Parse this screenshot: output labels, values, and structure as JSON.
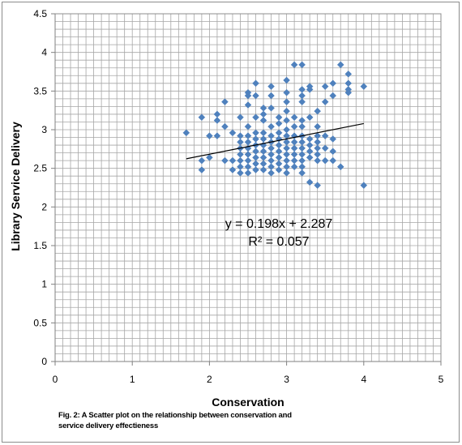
{
  "chart_data": {
    "type": "scatter",
    "xlabel": "Conservation",
    "ylabel": "Library  Service Delivery",
    "xlim": [
      0,
      5
    ],
    "ylim": [
      0,
      4.5
    ],
    "x_ticks": [
      "0",
      "1",
      "2",
      "3",
      "4",
      "5"
    ],
    "y_ticks": [
      "0",
      "0.5",
      "1",
      "1.5",
      "2",
      "2.5",
      "3",
      "3.5",
      "4",
      "4.5"
    ],
    "grid": true,
    "marker_color": "#4f81bd",
    "trendline": {
      "slope": 0.198,
      "intercept": 2.287,
      "x_range": [
        1.7,
        4.0
      ]
    },
    "equation_text": "y = 0.198x + 2.287",
    "r2_text": "R² = 0.057",
    "points": [
      {
        "x": 1.7,
        "y": 2.96
      },
      {
        "x": 1.9,
        "y": 3.16
      },
      {
        "x": 1.9,
        "y": 2.6
      },
      {
        "x": 1.9,
        "y": 2.48
      },
      {
        "x": 2.0,
        "y": 2.92
      },
      {
        "x": 2.0,
        "y": 2.64
      },
      {
        "x": 2.1,
        "y": 3.2
      },
      {
        "x": 2.1,
        "y": 3.12
      },
      {
        "x": 2.1,
        "y": 2.92
      },
      {
        "x": 2.2,
        "y": 3.36
      },
      {
        "x": 2.2,
        "y": 3.04
      },
      {
        "x": 2.2,
        "y": 2.6
      },
      {
        "x": 2.3,
        "y": 2.96
      },
      {
        "x": 2.3,
        "y": 2.6
      },
      {
        "x": 2.3,
        "y": 2.48
      },
      {
        "x": 2.4,
        "y": 3.16
      },
      {
        "x": 2.4,
        "y": 2.92
      },
      {
        "x": 2.4,
        "y": 2.84
      },
      {
        "x": 2.4,
        "y": 2.76
      },
      {
        "x": 2.4,
        "y": 2.68
      },
      {
        "x": 2.4,
        "y": 2.6
      },
      {
        "x": 2.4,
        "y": 2.52
      },
      {
        "x": 2.4,
        "y": 2.44
      },
      {
        "x": 2.5,
        "y": 3.48
      },
      {
        "x": 2.5,
        "y": 3.44
      },
      {
        "x": 2.5,
        "y": 3.32
      },
      {
        "x": 2.5,
        "y": 3.04
      },
      {
        "x": 2.5,
        "y": 2.92
      },
      {
        "x": 2.5,
        "y": 2.84
      },
      {
        "x": 2.5,
        "y": 2.76
      },
      {
        "x": 2.5,
        "y": 2.68
      },
      {
        "x": 2.5,
        "y": 2.6
      },
      {
        "x": 2.5,
        "y": 2.52
      },
      {
        "x": 2.5,
        "y": 2.44
      },
      {
        "x": 2.6,
        "y": 3.6
      },
      {
        "x": 2.6,
        "y": 3.44
      },
      {
        "x": 2.6,
        "y": 3.16
      },
      {
        "x": 2.6,
        "y": 2.96
      },
      {
        "x": 2.6,
        "y": 2.88
      },
      {
        "x": 2.6,
        "y": 2.8
      },
      {
        "x": 2.6,
        "y": 2.72
      },
      {
        "x": 2.6,
        "y": 2.64
      },
      {
        "x": 2.6,
        "y": 2.56
      },
      {
        "x": 2.6,
        "y": 2.48
      },
      {
        "x": 2.7,
        "y": 3.28
      },
      {
        "x": 2.7,
        "y": 3.2
      },
      {
        "x": 2.7,
        "y": 3.12
      },
      {
        "x": 2.7,
        "y": 2.96
      },
      {
        "x": 2.7,
        "y": 2.88
      },
      {
        "x": 2.7,
        "y": 2.8
      },
      {
        "x": 2.7,
        "y": 2.72
      },
      {
        "x": 2.7,
        "y": 2.64
      },
      {
        "x": 2.7,
        "y": 2.56
      },
      {
        "x": 2.7,
        "y": 2.48
      },
      {
        "x": 2.8,
        "y": 3.56
      },
      {
        "x": 2.8,
        "y": 3.44
      },
      {
        "x": 2.8,
        "y": 3.28
      },
      {
        "x": 2.8,
        "y": 3.04
      },
      {
        "x": 2.8,
        "y": 2.92
      },
      {
        "x": 2.8,
        "y": 2.84
      },
      {
        "x": 2.8,
        "y": 2.76
      },
      {
        "x": 2.8,
        "y": 2.68
      },
      {
        "x": 2.8,
        "y": 2.6
      },
      {
        "x": 2.8,
        "y": 2.52
      },
      {
        "x": 2.8,
        "y": 2.44
      },
      {
        "x": 2.9,
        "y": 3.16
      },
      {
        "x": 2.9,
        "y": 3.08
      },
      {
        "x": 2.9,
        "y": 2.96
      },
      {
        "x": 2.9,
        "y": 2.88
      },
      {
        "x": 2.9,
        "y": 2.8
      },
      {
        "x": 2.9,
        "y": 2.72
      },
      {
        "x": 2.9,
        "y": 2.64
      },
      {
        "x": 2.9,
        "y": 2.56
      },
      {
        "x": 2.9,
        "y": 2.48
      },
      {
        "x": 3.0,
        "y": 3.64
      },
      {
        "x": 3.0,
        "y": 3.48
      },
      {
        "x": 3.0,
        "y": 3.36
      },
      {
        "x": 3.0,
        "y": 3.24
      },
      {
        "x": 3.0,
        "y": 3.12
      },
      {
        "x": 3.0,
        "y": 3.0
      },
      {
        "x": 3.0,
        "y": 2.92
      },
      {
        "x": 3.0,
        "y": 2.84
      },
      {
        "x": 3.0,
        "y": 2.76
      },
      {
        "x": 3.0,
        "y": 2.68
      },
      {
        "x": 3.0,
        "y": 2.6
      },
      {
        "x": 3.0,
        "y": 2.52
      },
      {
        "x": 3.0,
        "y": 2.44
      },
      {
        "x": 3.1,
        "y": 3.84
      },
      {
        "x": 3.1,
        "y": 3.16
      },
      {
        "x": 3.1,
        "y": 3.04
      },
      {
        "x": 3.1,
        "y": 2.92
      },
      {
        "x": 3.1,
        "y": 2.84
      },
      {
        "x": 3.1,
        "y": 2.76
      },
      {
        "x": 3.1,
        "y": 2.68
      },
      {
        "x": 3.1,
        "y": 2.6
      },
      {
        "x": 3.1,
        "y": 2.52
      },
      {
        "x": 3.2,
        "y": 3.84
      },
      {
        "x": 3.2,
        "y": 3.52
      },
      {
        "x": 3.2,
        "y": 3.44
      },
      {
        "x": 3.2,
        "y": 3.36
      },
      {
        "x": 3.2,
        "y": 3.12
      },
      {
        "x": 3.2,
        "y": 3.04
      },
      {
        "x": 3.2,
        "y": 2.92
      },
      {
        "x": 3.2,
        "y": 2.84
      },
      {
        "x": 3.2,
        "y": 2.76
      },
      {
        "x": 3.2,
        "y": 2.68
      },
      {
        "x": 3.2,
        "y": 2.6
      },
      {
        "x": 3.2,
        "y": 2.52
      },
      {
        "x": 3.2,
        "y": 2.44
      },
      {
        "x": 3.3,
        "y": 3.56
      },
      {
        "x": 3.3,
        "y": 3.52
      },
      {
        "x": 3.3,
        "y": 3.16
      },
      {
        "x": 3.3,
        "y": 2.88
      },
      {
        "x": 3.3,
        "y": 2.8
      },
      {
        "x": 3.3,
        "y": 2.72
      },
      {
        "x": 3.3,
        "y": 2.64
      },
      {
        "x": 3.3,
        "y": 2.32
      },
      {
        "x": 3.4,
        "y": 3.24
      },
      {
        "x": 3.4,
        "y": 3.04
      },
      {
        "x": 3.4,
        "y": 2.92
      },
      {
        "x": 3.4,
        "y": 2.84
      },
      {
        "x": 3.4,
        "y": 2.76
      },
      {
        "x": 3.4,
        "y": 2.68
      },
      {
        "x": 3.4,
        "y": 2.6
      },
      {
        "x": 3.4,
        "y": 2.28
      },
      {
        "x": 3.5,
        "y": 3.56
      },
      {
        "x": 3.5,
        "y": 3.36
      },
      {
        "x": 3.5,
        "y": 2.92
      },
      {
        "x": 3.5,
        "y": 2.76
      },
      {
        "x": 3.5,
        "y": 2.6
      },
      {
        "x": 3.6,
        "y": 3.6
      },
      {
        "x": 3.6,
        "y": 3.44
      },
      {
        "x": 3.6,
        "y": 2.88
      },
      {
        "x": 3.6,
        "y": 2.72
      },
      {
        "x": 3.6,
        "y": 2.6
      },
      {
        "x": 3.7,
        "y": 3.84
      },
      {
        "x": 3.7,
        "y": 2.52
      },
      {
        "x": 3.8,
        "y": 3.72
      },
      {
        "x": 3.8,
        "y": 3.6
      },
      {
        "x": 3.8,
        "y": 3.52
      },
      {
        "x": 3.8,
        "y": 3.48
      },
      {
        "x": 4.0,
        "y": 3.56
      },
      {
        "x": 4.0,
        "y": 2.28
      }
    ]
  },
  "caption": {
    "line1": "Fig. 2: A Scatter plot on the relationship between conservation and",
    "line2": "service delivery effectieness"
  }
}
